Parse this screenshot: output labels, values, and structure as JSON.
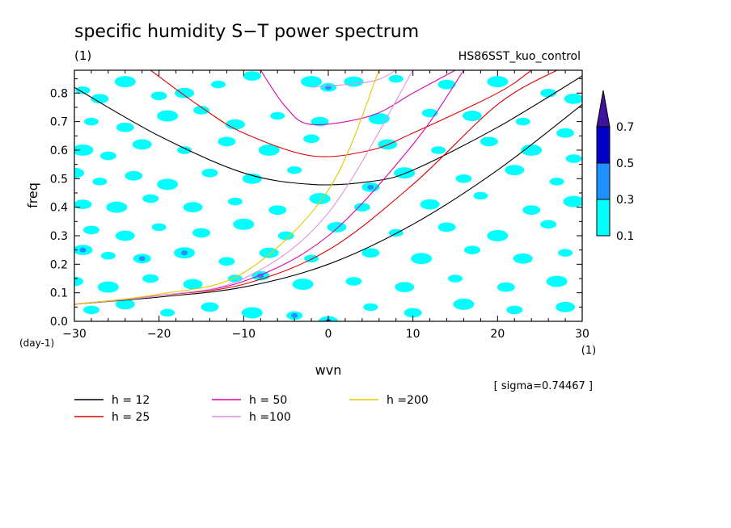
{
  "chart_data": {
    "type": "heatmap",
    "title": "specific humidity S−T power spectrum",
    "subtitle_left": "(1)",
    "subtitle_right": "HS86SST_kuo_control",
    "xlabel": "wvn",
    "ylabel": "freq",
    "x_unit": "(1)",
    "y_unit": "(day-1)",
    "xlim": [
      -30,
      30
    ],
    "ylim": [
      0,
      0.88
    ],
    "x_major_ticks": [
      -30,
      -20,
      -10,
      0,
      10,
      20,
      30
    ],
    "x_tick_labels": [
      "−30",
      "−20",
      "−10",
      "0",
      "10",
      "20",
      "30"
    ],
    "y_major_ticks": [
      0,
      0.1,
      0.2,
      0.3,
      0.4,
      0.5,
      0.6,
      0.7,
      0.8
    ],
    "y_tick_labels": [
      "0.0",
      "0.1",
      "0.2",
      "0.3",
      "0.4",
      "0.5",
      "0.6",
      "0.7",
      "0.8"
    ],
    "grid": false,
    "colorbar": {
      "levels": [
        "0.1",
        "0.3",
        "0.5",
        "0.7"
      ],
      "colors": [
        "#00ffff",
        "#1e90ff",
        "#0000c8",
        "#3c14a0"
      ],
      "extend": "max"
    },
    "sigma_label": "[ sigma=0.74467 ]",
    "legend_placement": "bottom-left",
    "dispersion_curves": [
      {
        "name": "h = 12",
        "color": "#000000",
        "kelvin": [
          [
            -30,
            0.06
          ],
          [
            -20,
            0.085
          ],
          [
            -10,
            0.12
          ],
          [
            0,
            0.2
          ],
          [
            10,
            0.34
          ],
          [
            20,
            0.53
          ],
          [
            30,
            0.76
          ]
        ],
        "gravity": [
          [
            -30,
            0.82
          ],
          [
            -20,
            0.65
          ],
          [
            -10,
            0.52
          ],
          [
            -2,
            0.48
          ],
          [
            5,
            0.49
          ],
          [
            10,
            0.53
          ],
          [
            20,
            0.68
          ],
          [
            30,
            0.86
          ]
        ]
      },
      {
        "name": "h = 25",
        "color": "#dd0000",
        "kelvin": [
          [
            -30,
            0.06
          ],
          [
            -20,
            0.09
          ],
          [
            -10,
            0.13
          ],
          [
            0,
            0.25
          ],
          [
            10,
            0.48
          ],
          [
            20,
            0.76
          ],
          [
            27,
            0.88
          ]
        ],
        "gravity": [
          [
            -21,
            0.88
          ],
          [
            -15,
            0.75
          ],
          [
            -10,
            0.66
          ],
          [
            -2,
            0.58
          ],
          [
            5,
            0.6
          ],
          [
            10,
            0.66
          ],
          [
            20,
            0.8
          ],
          [
            24,
            0.88
          ]
        ]
      },
      {
        "name": "h = 50",
        "color": "#dd00aa",
        "kelvin": [
          [
            -30,
            0.06
          ],
          [
            -20,
            0.09
          ],
          [
            -10,
            0.14
          ],
          [
            0,
            0.3
          ],
          [
            10,
            0.62
          ],
          [
            16,
            0.88
          ]
        ],
        "gravity": [
          [
            -8,
            0.88
          ],
          [
            -5,
            0.75
          ],
          [
            -2,
            0.69
          ],
          [
            5,
            0.72
          ],
          [
            10,
            0.8
          ],
          [
            15,
            0.88
          ]
        ]
      },
      {
        "name": "h =100",
        "color": "#e090e0",
        "kelvin": [
          [
            -30,
            0.06
          ],
          [
            -20,
            0.09
          ],
          [
            -10,
            0.15
          ],
          [
            0,
            0.38
          ],
          [
            10,
            0.88
          ]
        ],
        "gravity": [
          [
            -2,
            0.82
          ],
          [
            5,
            0.84
          ],
          [
            8,
            0.88
          ]
        ]
      },
      {
        "name": "h =200",
        "color": "#e6c800",
        "kelvin": [
          [
            -30,
            0.06
          ],
          [
            -20,
            0.095
          ],
          [
            -10,
            0.17
          ],
          [
            0,
            0.46
          ],
          [
            6,
            0.88
          ]
        ]
      }
    ],
    "significant_cells": [
      [
        -29,
        0.81,
        1
      ],
      [
        -27,
        0.78,
        1
      ],
      [
        -24,
        0.84,
        1
      ],
      [
        -20,
        0.79,
        1
      ],
      [
        -17,
        0.8,
        1
      ],
      [
        -13,
        0.83,
        1
      ],
      [
        -9,
        0.86,
        1
      ],
      [
        -2,
        0.84,
        1
      ],
      [
        0,
        0.82,
        2
      ],
      [
        3,
        0.84,
        1
      ],
      [
        8,
        0.85,
        1
      ],
      [
        14,
        0.83,
        1
      ],
      [
        20,
        0.84,
        1
      ],
      [
        26,
        0.8,
        1
      ],
      [
        29,
        0.78,
        1
      ],
      [
        -28,
        0.7,
        1
      ],
      [
        -24,
        0.68,
        1
      ],
      [
        -19,
        0.72,
        1
      ],
      [
        -15,
        0.74,
        1
      ],
      [
        -11,
        0.69,
        1
      ],
      [
        -6,
        0.72,
        1
      ],
      [
        -1,
        0.7,
        1
      ],
      [
        6,
        0.71,
        1
      ],
      [
        12,
        0.73,
        1
      ],
      [
        17,
        0.72,
        1
      ],
      [
        23,
        0.7,
        1
      ],
      [
        28,
        0.66,
        1
      ],
      [
        -29,
        0.6,
        1
      ],
      [
        -26,
        0.58,
        1
      ],
      [
        -22,
        0.62,
        1
      ],
      [
        -17,
        0.6,
        1
      ],
      [
        -12,
        0.63,
        1
      ],
      [
        -7,
        0.6,
        1
      ],
      [
        -2,
        0.64,
        1
      ],
      [
        7,
        0.62,
        1
      ],
      [
        13,
        0.6,
        1
      ],
      [
        19,
        0.63,
        1
      ],
      [
        24,
        0.6,
        1
      ],
      [
        29,
        0.57,
        1
      ],
      [
        -30,
        0.52,
        1
      ],
      [
        -27,
        0.49,
        1
      ],
      [
        -23,
        0.51,
        1
      ],
      [
        -19,
        0.48,
        1
      ],
      [
        -14,
        0.52,
        1
      ],
      [
        -9,
        0.5,
        1
      ],
      [
        -4,
        0.53,
        1
      ],
      [
        5,
        0.47,
        2
      ],
      [
        9,
        0.52,
        1
      ],
      [
        16,
        0.5,
        1
      ],
      [
        22,
        0.53,
        1
      ],
      [
        27,
        0.49,
        1
      ],
      [
        -29,
        0.41,
        1
      ],
      [
        -25,
        0.4,
        1
      ],
      [
        -21,
        0.43,
        1
      ],
      [
        -16,
        0.4,
        1
      ],
      [
        -11,
        0.42,
        1
      ],
      [
        -6,
        0.39,
        1
      ],
      [
        -1,
        0.43,
        1
      ],
      [
        4,
        0.4,
        1
      ],
      [
        12,
        0.41,
        1
      ],
      [
        18,
        0.44,
        1
      ],
      [
        24,
        0.39,
        1
      ],
      [
        29,
        0.42,
        1
      ],
      [
        -28,
        0.32,
        1
      ],
      [
        -24,
        0.3,
        1
      ],
      [
        -20,
        0.33,
        1
      ],
      [
        -15,
        0.31,
        1
      ],
      [
        -10,
        0.34,
        1
      ],
      [
        -5,
        0.3,
        1
      ],
      [
        1,
        0.33,
        1
      ],
      [
        8,
        0.31,
        1
      ],
      [
        14,
        0.33,
        1
      ],
      [
        20,
        0.3,
        1
      ],
      [
        26,
        0.34,
        1
      ],
      [
        -29,
        0.25,
        2
      ],
      [
        -26,
        0.23,
        1
      ],
      [
        -22,
        0.22,
        2
      ],
      [
        -17,
        0.24,
        2
      ],
      [
        -12,
        0.21,
        1
      ],
      [
        -7,
        0.24,
        1
      ],
      [
        -2,
        0.22,
        1
      ],
      [
        5,
        0.24,
        1
      ],
      [
        11,
        0.22,
        1
      ],
      [
        17,
        0.25,
        1
      ],
      [
        23,
        0.22,
        1
      ],
      [
        28,
        0.24,
        1
      ],
      [
        -30,
        0.14,
        1
      ],
      [
        -26,
        0.12,
        1
      ],
      [
        -21,
        0.15,
        1
      ],
      [
        -16,
        0.13,
        1
      ],
      [
        -11,
        0.15,
        1
      ],
      [
        -8,
        0.16,
        2
      ],
      [
        -3,
        0.13,
        1
      ],
      [
        3,
        0.14,
        1
      ],
      [
        9,
        0.12,
        1
      ],
      [
        15,
        0.15,
        1
      ],
      [
        21,
        0.12,
        1
      ],
      [
        27,
        0.14,
        1
      ],
      [
        -28,
        0.04,
        1
      ],
      [
        -24,
        0.06,
        1
      ],
      [
        -19,
        0.03,
        1
      ],
      [
        -14,
        0.05,
        1
      ],
      [
        -9,
        0.03,
        1
      ],
      [
        -4,
        0.02,
        2
      ],
      [
        0,
        0.0,
        3
      ],
      [
        5,
        0.05,
        1
      ],
      [
        10,
        0.03,
        1
      ],
      [
        16,
        0.06,
        1
      ],
      [
        22,
        0.04,
        1
      ],
      [
        28,
        0.05,
        1
      ]
    ]
  }
}
